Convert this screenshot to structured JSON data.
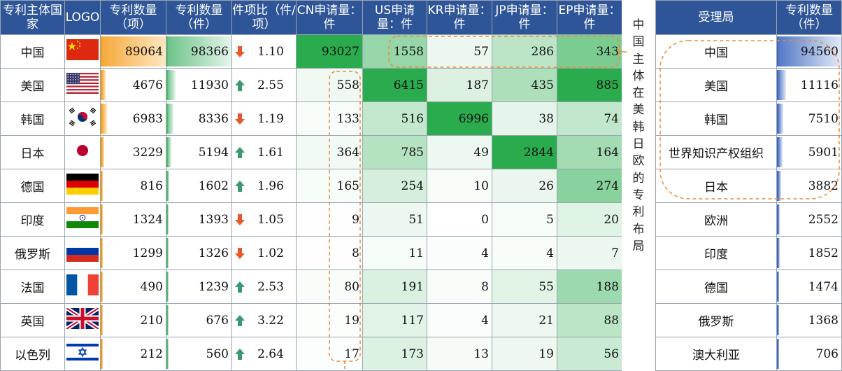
{
  "chart_data": {
    "type": "table",
    "left_table": {
      "headers": [
        "专利主体国家",
        "LOGO",
        "专利数量（项）",
        "专利数量（件）",
        "件项比（件/项）",
        "CN申请量：件",
        "US申请量：件",
        "KR申请量：件",
        "JP申请量：件",
        "EP申请量：件"
      ],
      "rows": [
        {
          "country": "中国",
          "flag": "china-flag",
          "items": "89064",
          "pieces": "98366",
          "trend": "down",
          "ratio": "1.10",
          "cn": "93027",
          "us": "1558",
          "kr": "57",
          "jp": "286",
          "ep": "343"
        },
        {
          "country": "美国",
          "flag": "usa-flag",
          "items": "4676",
          "pieces": "11930",
          "trend": "up",
          "ratio": "2.55",
          "cn": "558",
          "us": "6415",
          "kr": "187",
          "jp": "435",
          "ep": "885"
        },
        {
          "country": "韩国",
          "flag": "korea-flag",
          "items": "6983",
          "pieces": "8336",
          "trend": "down",
          "ratio": "1.19",
          "cn": "133",
          "us": "516",
          "kr": "6996",
          "jp": "38",
          "ep": "74"
        },
        {
          "country": "日本",
          "flag": "japan-flag",
          "items": "3229",
          "pieces": "5194",
          "trend": "up",
          "ratio": "1.61",
          "cn": "364",
          "us": "785",
          "kr": "49",
          "jp": "2844",
          "ep": "164"
        },
        {
          "country": "德国",
          "flag": "germany-flag",
          "items": "816",
          "pieces": "1602",
          "trend": "up",
          "ratio": "1.96",
          "cn": "165",
          "us": "254",
          "kr": "10",
          "jp": "26",
          "ep": "274"
        },
        {
          "country": "印度",
          "flag": "india-flag",
          "items": "1324",
          "pieces": "1393",
          "trend": "down",
          "ratio": "1.05",
          "cn": "9",
          "us": "51",
          "kr": "0",
          "jp": "5",
          "ep": "20"
        },
        {
          "country": "俄罗斯",
          "flag": "russia-flag",
          "items": "1299",
          "pieces": "1326",
          "trend": "down",
          "ratio": "1.02",
          "cn": "8",
          "us": "11",
          "kr": "4",
          "jp": "4",
          "ep": "7"
        },
        {
          "country": "法国",
          "flag": "france-flag",
          "items": "490",
          "pieces": "1239",
          "trend": "up",
          "ratio": "2.53",
          "cn": "80",
          "us": "191",
          "kr": "8",
          "jp": "55",
          "ep": "188"
        },
        {
          "country": "英国",
          "flag": "uk-flag",
          "items": "210",
          "pieces": "676",
          "trend": "up",
          "ratio": "3.22",
          "cn": "19",
          "us": "117",
          "kr": "4",
          "jp": "21",
          "ep": "88"
        },
        {
          "country": "以色列",
          "flag": "israel-flag",
          "items": "212",
          "pieces": "560",
          "trend": "up",
          "ratio": "2.64",
          "cn": "17",
          "us": "173",
          "kr": "13",
          "jp": "19",
          "ep": "56"
        }
      ]
    },
    "annotation": "中国主体在美韩日欧的专利布局",
    "right_table": {
      "headers": [
        "受理局",
        "专利数量（件）"
      ],
      "rows": [
        {
          "office": "中国",
          "count": "94560"
        },
        {
          "office": "美国",
          "count": "11116"
        },
        {
          "office": "韩国",
          "count": "7510"
        },
        {
          "office": "世界知识产权组织",
          "count": "5901"
        },
        {
          "office": "日本",
          "count": "3882"
        },
        {
          "office": "欧洲",
          "count": "2552"
        },
        {
          "office": "印度",
          "count": "1852"
        },
        {
          "office": "德国",
          "count": "1474"
        },
        {
          "office": "俄罗斯",
          "count": "1368"
        },
        {
          "office": "澳大利亚",
          "count": "706"
        }
      ]
    },
    "colors": {
      "header_bg": "#2e5597",
      "items_bar": "#f5a623",
      "pieces_bar": "#6ec38a",
      "office_bar": "#4a72c4",
      "heat_high": "#1fa845",
      "arrow_up": "#3a9a6e",
      "arrow_down": "#e8572a",
      "dash_annotation": "#e88a3c"
    }
  }
}
